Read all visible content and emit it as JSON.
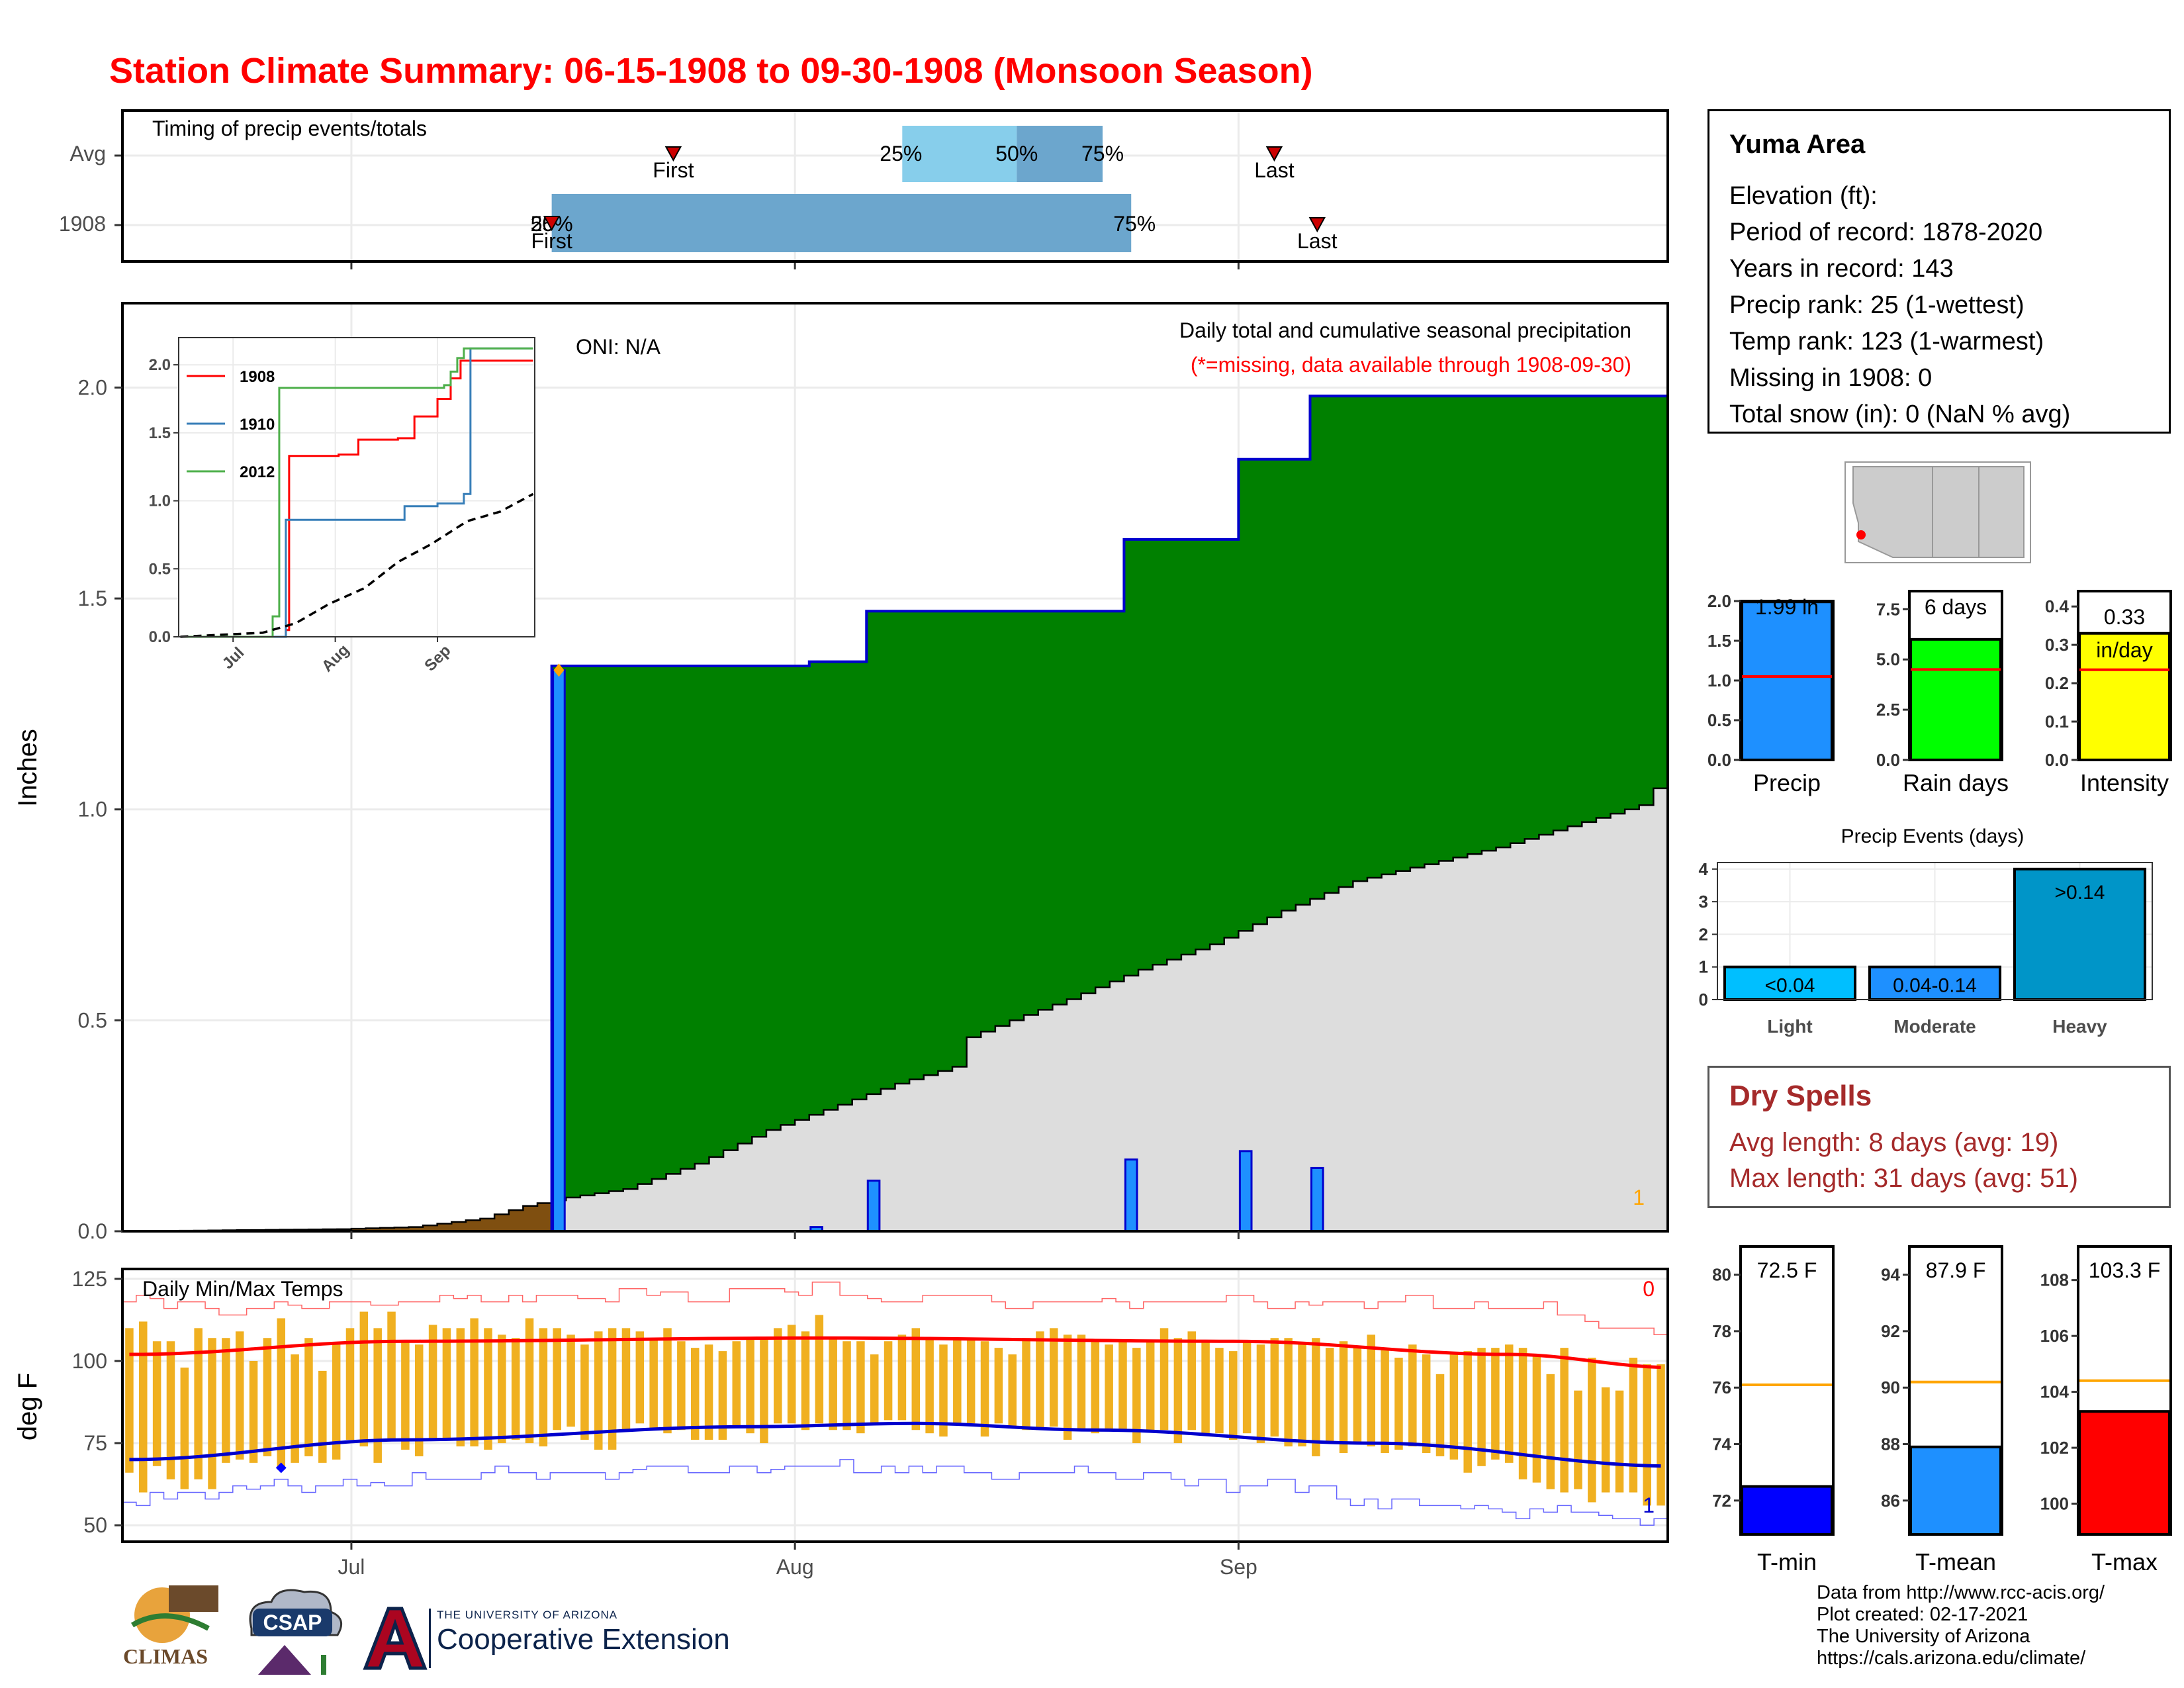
{
  "title": "Station Climate Summary: 06-15-1908 to 09-30-1908 (Monsoon Season)",
  "colors": {
    "title": "#ff0000",
    "green": "#008000",
    "brown": "#7f4f10",
    "precip_bar": "#1e90ff",
    "normal_fill": "#dddddd",
    "cum_line": "#0000cd",
    "temp_bar": "#f0b020",
    "tmax_line": "#ff0000",
    "tmin_line": "#0000cd",
    "dry": "#a52a2a"
  },
  "timing_panel": {
    "label": "Timing of precip events/totals",
    "rows": [
      "Avg",
      "1908"
    ],
    "avg": {
      "q25": "2021-08-08",
      "q50": "2021-08-16",
      "q75": "2021-08-22",
      "first": "2021-07-23",
      "last": "2021-09-03"
    },
    "yr": {
      "q25": "2021-07-15",
      "q50": "2021-07-15",
      "q75": "2021-08-24",
      "first": "2021-07-15",
      "last": "2021-09-06"
    },
    "labels": {
      "q25": "25%",
      "q50": "50%",
      "q75": "75%",
      "first": "First",
      "last": "Last"
    }
  },
  "precip_panel": {
    "ylabel": "Inches",
    "yticks": [
      "0.0",
      "0.5",
      "1.0",
      "1.5",
      "2.0"
    ],
    "ylim": [
      0,
      2.2
    ],
    "oni": "ONI: N/A",
    "subtitle": "Daily total and cumulative seasonal precipitation",
    "missing_note": "(*=missing, data available through 1908-09-30)",
    "missing_count": "1",
    "start": "2021-06-15",
    "chart_data": {
      "type": "area",
      "daily_precip": [
        {
          "date": "2021-07-15",
          "value": 1.33
        },
        {
          "date": "2021-08-02",
          "value": 0.01
        },
        {
          "date": "2021-08-06",
          "value": 0.12
        },
        {
          "date": "2021-08-24",
          "value": 0.17
        },
        {
          "date": "2021-09-01",
          "value": 0.19
        },
        {
          "date": "2021-09-06",
          "value": 0.15
        }
      ],
      "cumulative_1908": [
        {
          "date": "2021-06-15",
          "value": 0.0
        },
        {
          "date": "2021-07-15",
          "value": 1.34
        },
        {
          "date": "2021-08-02",
          "value": 1.35
        },
        {
          "date": "2021-08-06",
          "value": 1.47
        },
        {
          "date": "2021-08-24",
          "value": 1.64
        },
        {
          "date": "2021-09-01",
          "value": 1.83
        },
        {
          "date": "2021-09-06",
          "value": 1.98
        },
        {
          "date": "2021-09-30",
          "value": 1.98
        }
      ],
      "average_cumulative": [
        {
          "date": "2021-06-15",
          "value": 0.0
        },
        {
          "date": "2021-06-30",
          "value": 0.005
        },
        {
          "date": "2021-07-05",
          "value": 0.01
        },
        {
          "date": "2021-07-10",
          "value": 0.03
        },
        {
          "date": "2021-07-13",
          "value": 0.06
        },
        {
          "date": "2021-07-16",
          "value": 0.08
        },
        {
          "date": "2021-07-20",
          "value": 0.1
        },
        {
          "date": "2021-07-25",
          "value": 0.16
        },
        {
          "date": "2021-07-30",
          "value": 0.24
        },
        {
          "date": "2021-08-04",
          "value": 0.3
        },
        {
          "date": "2021-08-08",
          "value": 0.35
        },
        {
          "date": "2021-08-12",
          "value": 0.39
        },
        {
          "date": "2021-08-13",
          "value": 0.46
        },
        {
          "date": "2021-08-16",
          "value": 0.5
        },
        {
          "date": "2021-08-20",
          "value": 0.55
        },
        {
          "date": "2021-08-25",
          "value": 0.62
        },
        {
          "date": "2021-08-30",
          "value": 0.68
        },
        {
          "date": "2021-09-04",
          "value": 0.76
        },
        {
          "date": "2021-09-09",
          "value": 0.83
        },
        {
          "date": "2021-09-14",
          "value": 0.87
        },
        {
          "date": "2021-09-19",
          "value": 0.91
        },
        {
          "date": "2021-09-24",
          "value": 0.96
        },
        {
          "date": "2021-09-29",
          "value": 1.01
        },
        {
          "date": "2021-09-30",
          "value": 1.05
        }
      ]
    }
  },
  "inset": {
    "yticks": [
      "0.0",
      "0.5",
      "1.0",
      "1.5",
      "2.0"
    ],
    "xticks": [
      "Jul",
      "Aug",
      "Sep"
    ],
    "chart_data": {
      "type": "line",
      "ylim": [
        0,
        2.2
      ],
      "series": [
        {
          "name": "1908",
          "color": "#ff0000",
          "points": [
            [
              "2021-06-15",
              0
            ],
            [
              "2021-07-16",
              0
            ],
            [
              "2021-07-17",
              0.05
            ],
            [
              "2021-07-18",
              1.33
            ],
            [
              "2021-08-02",
              1.34
            ],
            [
              "2021-08-08",
              1.45
            ],
            [
              "2021-08-20",
              1.46
            ],
            [
              "2021-08-25",
              1.62
            ],
            [
              "2021-09-01",
              1.75
            ],
            [
              "2021-09-05",
              1.9
            ],
            [
              "2021-09-08",
              2.03
            ],
            [
              "2021-09-30",
              2.03
            ]
          ]
        },
        {
          "name": "1910",
          "color": "#377eb8",
          "points": [
            [
              "2021-06-15",
              0
            ],
            [
              "2021-07-16",
              0
            ],
            [
              "2021-07-17",
              0.86
            ],
            [
              "2021-08-20",
              0.86
            ],
            [
              "2021-08-22",
              0.96
            ],
            [
              "2021-09-01",
              0.98
            ],
            [
              "2021-09-09",
              1.05
            ],
            [
              "2021-09-11",
              2.12
            ],
            [
              "2021-09-30",
              2.12
            ]
          ]
        },
        {
          "name": "2012",
          "color": "#4daf4a",
          "points": [
            [
              "2021-06-15",
              0
            ],
            [
              "2021-07-12",
              0
            ],
            [
              "2021-07-13",
              0.15
            ],
            [
              "2021-07-15",
              1.83
            ],
            [
              "2021-09-03",
              1.85
            ],
            [
              "2021-09-05",
              1.95
            ],
            [
              "2021-09-07",
              2.05
            ],
            [
              "2021-09-09",
              2.12
            ],
            [
              "2021-09-30",
              2.12
            ]
          ]
        },
        {
          "name": "avg",
          "color": "#000000",
          "dashed": true,
          "points": [
            [
              "2021-06-15",
              0
            ],
            [
              "2021-07-10",
              0.03
            ],
            [
              "2021-07-20",
              0.1
            ],
            [
              "2021-07-30",
              0.24
            ],
            [
              "2021-08-10",
              0.36
            ],
            [
              "2021-08-20",
              0.55
            ],
            [
              "2021-08-30",
              0.68
            ],
            [
              "2021-09-10",
              0.85
            ],
            [
              "2021-09-20",
              0.92
            ],
            [
              "2021-09-30",
              1.05
            ]
          ]
        }
      ]
    }
  },
  "temp_panel": {
    "label": "Daily Min/Max Temps",
    "ylabel": "deg F",
    "yticks": [
      "50",
      "75",
      "100",
      "125"
    ],
    "ylim": [
      45,
      128
    ],
    "xticks": [
      "Jul",
      "Aug",
      "Sep"
    ],
    "missing_top": "0",
    "missing_bottom": "1",
    "chart_data": {
      "type": "line",
      "tmax_daily": [
        110,
        112,
        106,
        106,
        98,
        110,
        107,
        107,
        109,
        100,
        107,
        113,
        102,
        107,
        97,
        105,
        110,
        115,
        110,
        115,
        106,
        105,
        111,
        110,
        110,
        113,
        110,
        108,
        107,
        113,
        110,
        110,
        108,
        105,
        109,
        110,
        110,
        109,
        107,
        110,
        106,
        104,
        105,
        103,
        106,
        107,
        107,
        110,
        111,
        109,
        114,
        107,
        106,
        106,
        102,
        106,
        108,
        110,
        107,
        105,
        107,
        107,
        106,
        104,
        102,
        107,
        109,
        110,
        108,
        108,
        106,
        105,
        106,
        104,
        106,
        110,
        107,
        109,
        106,
        104,
        103,
        106,
        105,
        107,
        107,
        105,
        107,
        104,
        106,
        104,
        108,
        104,
        101,
        105,
        102,
        96,
        102,
        103,
        104,
        104,
        105,
        104,
        102,
        96,
        104,
        91,
        101,
        92,
        91,
        101,
        99,
        99
      ],
      "tmin_daily": [
        66,
        60,
        68,
        64,
        61,
        64,
        61,
        69,
        70,
        69,
        71,
        67,
        69,
        71,
        69,
        70,
        76,
        74,
        69,
        76,
        73,
        71,
        76,
        76,
        74,
        74,
        73,
        75,
        76,
        75,
        74,
        79,
        80,
        76,
        73,
        73,
        79,
        81,
        79,
        78,
        79,
        76,
        76,
        76,
        80,
        78,
        75,
        81,
        81,
        79,
        81,
        79,
        79,
        78,
        81,
        82,
        82,
        79,
        78,
        77,
        81,
        81,
        77,
        81,
        80,
        79,
        79,
        80,
        76,
        79,
        78,
        79,
        79,
        75,
        79,
        79,
        75,
        79,
        78,
        78,
        76,
        78,
        75,
        77,
        74,
        74,
        71,
        75,
        72,
        75,
        74,
        72,
        73,
        74,
        72,
        71,
        70,
        66,
        68,
        70,
        69,
        64,
        63,
        61,
        60,
        61,
        57,
        60,
        60,
        60,
        56,
        56
      ],
      "avg_tmax_points": [
        [
          0,
          102
        ],
        [
          20,
          106
        ],
        [
          50,
          107
        ],
        [
          80,
          106
        ],
        [
          100,
          102
        ],
        [
          112,
          98
        ]
      ],
      "avg_tmin_points": [
        [
          0,
          70
        ],
        [
          20,
          76
        ],
        [
          45,
          80
        ],
        [
          57,
          81
        ],
        [
          70,
          79
        ],
        [
          90,
          75
        ],
        [
          112,
          68
        ]
      ],
      "record_high": [
        118,
        120,
        119,
        116,
        118,
        118,
        116,
        114,
        114,
        116,
        116,
        118,
        117,
        116,
        116,
        118,
        118,
        118,
        117,
        117,
        118,
        118,
        118,
        120,
        119,
        120,
        118,
        118,
        120,
        118,
        120,
        120,
        120,
        119,
        119,
        118,
        122,
        122,
        120,
        121,
        121,
        118,
        118,
        118,
        122,
        122,
        122,
        122,
        121,
        120,
        124,
        124,
        120,
        120,
        119,
        118,
        118,
        118,
        120,
        120,
        120,
        120,
        120,
        118,
        116,
        116,
        118,
        118,
        118,
        118,
        118,
        119,
        118,
        116,
        118,
        118,
        118,
        118,
        118,
        118,
        120,
        120,
        118,
        116,
        116,
        118,
        117,
        118,
        118,
        118,
        116,
        118,
        118,
        120,
        120,
        116,
        116,
        116,
        118,
        116,
        116,
        116,
        116,
        118,
        114,
        114,
        112,
        110,
        110,
        110,
        110,
        108
      ],
      "record_low": [
        57,
        56,
        60,
        58,
        60,
        60,
        58,
        60,
        62,
        61,
        62,
        64,
        62,
        60,
        62,
        62,
        64,
        62,
        63,
        62,
        62,
        66,
        64,
        64,
        64,
        64,
        66,
        68,
        66,
        66,
        64,
        66,
        66,
        66,
        66,
        64,
        66,
        67,
        68,
        68,
        68,
        66,
        66,
        66,
        68,
        68,
        66,
        67,
        68,
        68,
        68,
        68,
        70,
        66,
        66,
        68,
        66,
        68,
        66,
        68,
        68,
        66,
        66,
        64,
        64,
        66,
        66,
        66,
        66,
        68,
        66,
        66,
        64,
        64,
        66,
        66,
        64,
        62,
        64,
        64,
        60,
        62,
        62,
        64,
        64,
        60,
        62,
        62,
        58,
        56,
        58,
        55,
        58,
        58,
        56,
        56,
        56,
        55,
        56,
        55,
        54,
        52,
        55,
        54,
        56,
        54,
        54,
        53,
        52,
        52,
        50,
        52
      ]
    }
  },
  "station": {
    "name": "Yuma Area",
    "rows": [
      "Elevation (ft):",
      "Period of record: 1878-2020",
      "Years in record: 143",
      "Precip rank: 25 (1-wettest)",
      "Temp rank: 123 (1-warmest)",
      "Missing in 1908: 0",
      "Total snow (in): 0 (NaN % avg)"
    ]
  },
  "precip_bars": {
    "chart_data": {
      "type": "bar",
      "panels": [
        {
          "label": "Precip",
          "value": 1.99,
          "avg": 1.05,
          "ylim": [
            0,
            2.0
          ],
          "yticks": [
            "0.0",
            "0.5",
            "1.0",
            "1.5",
            "2.0"
          ],
          "color": "#1e90ff",
          "value_label": "1.99 in"
        },
        {
          "label": "Rain days",
          "value": 6,
          "avg": 4.5,
          "ylim": [
            0,
            8.4
          ],
          "yticks": [
            "0.0",
            "2.5",
            "5.0",
            "7.5"
          ],
          "color": "#00ff00",
          "value_label": "6 days"
        },
        {
          "label": "Intensity",
          "value": 0.33,
          "avg": 0.235,
          "ylim": [
            0,
            0.44
          ],
          "yticks": [
            "0.0",
            "0.1",
            "0.2",
            "0.3",
            "0.4"
          ],
          "color": "#ffff00",
          "value_label": "0.33",
          "unit_label": "in/day"
        }
      ]
    }
  },
  "events": {
    "title": "Precip Events (days)",
    "chart_data": {
      "type": "bar",
      "categories": [
        "Light",
        "Moderate",
        "Heavy"
      ],
      "values": [
        1,
        1,
        4
      ],
      "bar_labels": [
        "<0.04",
        "0.04-0.14",
        ">0.14"
      ],
      "colors": [
        "#00bfff",
        "#1e90ff",
        "#0095c8"
      ],
      "ylim": [
        0,
        4.2
      ],
      "yticks": [
        "0",
        "1",
        "2",
        "3",
        "4"
      ]
    }
  },
  "dry_spells": {
    "title": "Dry Spells",
    "avg_line": "Avg length: 8 days (avg: 19)",
    "max_line": "Max length: 31 days (avg: 51)"
  },
  "temp_bars": {
    "chart_data": {
      "type": "bar",
      "panels": [
        {
          "label": "T-min",
          "value": 72.5,
          "avg": 76.1,
          "ylim": [
            70.8,
            81
          ],
          "yticks": [
            "72",
            "74",
            "76",
            "78",
            "80"
          ],
          "tickvals": [
            72,
            74,
            76,
            78,
            80
          ],
          "color": "#0000ff",
          "value_label": "72.5 F"
        },
        {
          "label": "T-mean",
          "value": 87.9,
          "avg": 90.2,
          "ylim": [
            84.8,
            95
          ],
          "yticks": [
            "86",
            "88",
            "90",
            "92",
            "94"
          ],
          "tickvals": [
            86,
            88,
            90,
            92,
            94
          ],
          "color": "#1e90ff",
          "value_label": "87.9 F"
        },
        {
          "label": "T-max",
          "value": 103.3,
          "avg": 104.4,
          "ylim": [
            98.9,
            109.2
          ],
          "yticks": [
            "100",
            "102",
            "104",
            "106",
            "108"
          ],
          "tickvals": [
            100,
            102,
            104,
            106,
            108
          ],
          "color": "#ff0000",
          "value_label": "103.3 F"
        }
      ]
    }
  },
  "credits": [
    "Data from http://www.rcc-acis.org/",
    "Plot created: 02-17-2021",
    "The University of Arizona",
    "https://cals.arizona.edu/climate/"
  ],
  "logos": {
    "climas": "CLIMAS",
    "csap": "CSAP",
    "ua_small": "THE UNIVERSITY OF ARIZONA",
    "coop": "Cooperative Extension"
  }
}
